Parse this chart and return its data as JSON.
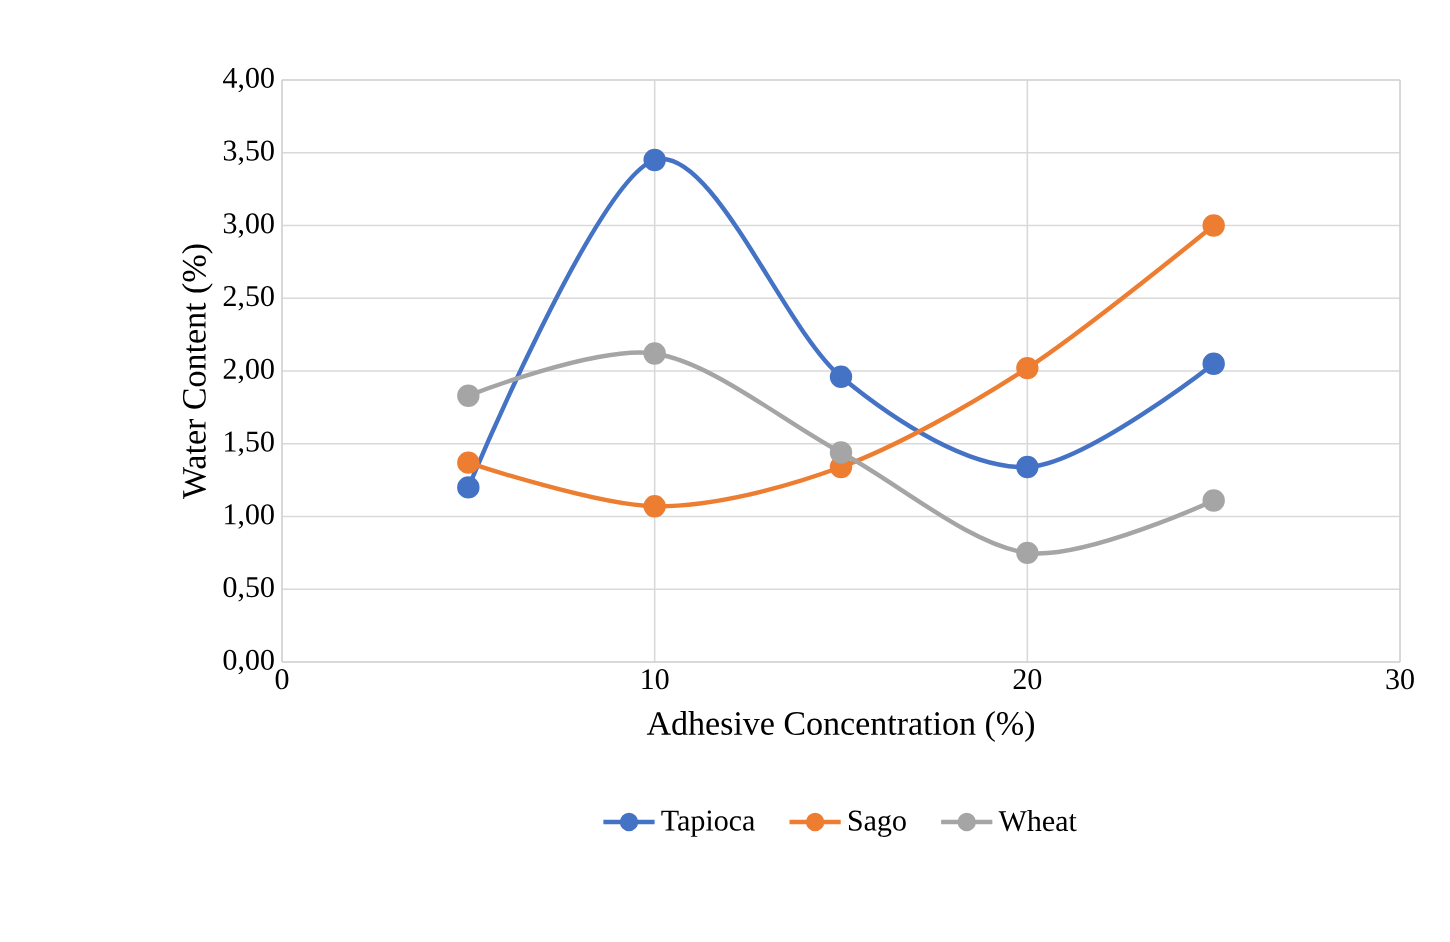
{
  "chart_data": {
    "type": "line",
    "xlabel": "Adhesive Concentration (%)",
    "ylabel": "Water Content (%)",
    "xlim": [
      0,
      30
    ],
    "xticks": [
      0,
      10,
      20,
      30
    ],
    "ylim": [
      0,
      4
    ],
    "yticks": [
      {
        "value": 0,
        "label": "0,00"
      },
      {
        "value": 0.5,
        "label": "0,50"
      },
      {
        "value": 1,
        "label": "1,00"
      },
      {
        "value": 1.5,
        "label": "1,50"
      },
      {
        "value": 2,
        "label": "2,00"
      },
      {
        "value": 2.5,
        "label": "2,50"
      },
      {
        "value": 3,
        "label": "3,00"
      },
      {
        "value": 3.5,
        "label": "3,50"
      },
      {
        "value": 4,
        "label": "4,00"
      }
    ],
    "x": [
      5,
      10,
      15,
      20,
      25
    ],
    "series": [
      {
        "name": "Tapioca",
        "color": "#4472c4",
        "values": [
          1.2,
          3.45,
          1.96,
          1.34,
          2.05
        ]
      },
      {
        "name": "Sago",
        "color": "#ed7d31",
        "values": [
          1.37,
          1.07,
          1.34,
          2.02,
          3.0
        ]
      },
      {
        "name": "Wheat",
        "color": "#a5a5a5",
        "values": [
          1.83,
          2.12,
          1.44,
          0.75,
          1.11
        ]
      }
    ],
    "grid": true,
    "legend": "bottom",
    "marker": "circle",
    "line_style": "solid"
  }
}
